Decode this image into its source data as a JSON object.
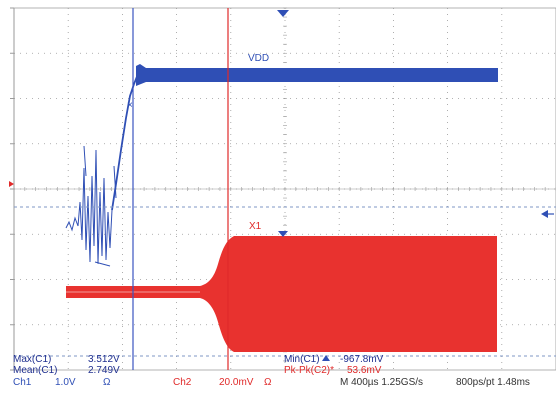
{
  "colors": {
    "ch1": "#2f4fb5",
    "ch2": "#e8322f",
    "cursor": "#e02a2a",
    "grid": "#8c8c8c",
    "background": "#ffffff"
  },
  "icons": {
    "trigger_marker": "triangle-down",
    "trigger_level": "arrow-left"
  },
  "waveform_labels": {
    "ch1_name": "VDD",
    "cursor_x1": "X1"
  },
  "measurements": {
    "max_label": "Max(C1)",
    "max_value": "3.512V",
    "mean_label": "Mean(C1)",
    "mean_value": "2.749V",
    "min_label": "Min(C1)",
    "min_value": "-967.8mV",
    "pkpk_label": "Pk-Pk(C2)*",
    "pkpk_value": "53.6mV"
  },
  "status_bar": {
    "ch1_label": "Ch1",
    "ch1_scale": "1.0V",
    "ch1_coupling": "Ω",
    "ch2_label": "Ch2",
    "ch2_scale": "20.0mV",
    "ch2_coupling": "Ω",
    "timebase": "M 400µs 1.25GS/s",
    "record": "800ps/pt 1.48ms"
  }
}
